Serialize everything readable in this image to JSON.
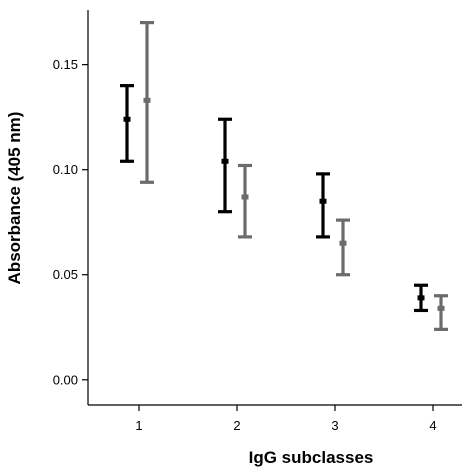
{
  "chart_data": {
    "type": "scatter",
    "title": "",
    "xlabel": "IgG subclasses",
    "ylabel": "Absorbance (405 nm)",
    "categories": [
      "1",
      "2",
      "3",
      "4"
    ],
    "yticks": [
      "0.00",
      "0.05",
      "0.10",
      "0.15"
    ],
    "ylim": [
      -0.012,
      0.176
    ],
    "grid": false,
    "legend": "none",
    "series": [
      {
        "color": "#000000",
        "values": [
          0.124,
          0.104,
          0.085,
          0.039
        ],
        "lower": [
          0.104,
          0.08,
          0.068,
          0.033
        ],
        "upper": [
          0.14,
          0.124,
          0.098,
          0.045
        ]
      },
      {
        "color": "#6b6b6b",
        "values": [
          0.133,
          0.087,
          0.065,
          0.034
        ],
        "lower": [
          0.094,
          0.068,
          0.05,
          0.024
        ],
        "upper": [
          0.17,
          0.102,
          0.076,
          0.04
        ]
      }
    ]
  }
}
